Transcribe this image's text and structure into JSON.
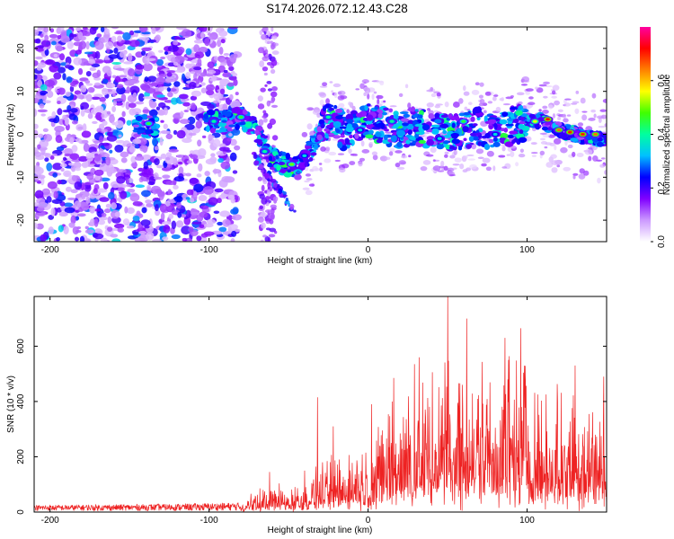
{
  "title": "S174.2026.072.12.43.C28",
  "chart_data": [
    {
      "type": "heatmap",
      "name": "spectrogram",
      "xlabel": "Height of straight line (km)",
      "ylabel": "Frequency (Hz)",
      "xlim": [
        -210,
        150
      ],
      "ylim": [
        -25,
        25
      ],
      "xticks": [
        -200,
        -100,
        0,
        100
      ],
      "yticks": [
        -20,
        -10,
        0,
        10,
        20
      ],
      "colorbar": {
        "label": "Normalized spectral amplitude",
        "range": [
          0,
          0.8
        ],
        "ticks": [
          0.0,
          0.2,
          0.4,
          0.6
        ],
        "tick_labels": [
          "0.0",
          "0.2",
          "0.4",
          "0.6"
        ],
        "colors": [
          "#ffffff",
          "#cc99ff",
          "#8000ff",
          "#0000ff",
          "#00c0ff",
          "#00ffa0",
          "#40ff00",
          "#ffff00",
          "#ff8000",
          "#ff0000",
          "#ff00a0"
        ]
      },
      "signal_track": [
        {
          "x": -145,
          "f": 2
        },
        {
          "x": -135,
          "f": 2
        },
        {
          "x": -100,
          "f": 3
        },
        {
          "x": -88,
          "f": 3
        },
        {
          "x": -80,
          "f": 4
        },
        {
          "x": -72,
          "f": 2
        },
        {
          "x": -65,
          "f": -3
        },
        {
          "x": -60,
          "f": -6
        },
        {
          "x": -52,
          "f": -7
        },
        {
          "x": -45,
          "f": -8
        },
        {
          "x": -40,
          "f": -6
        },
        {
          "x": -35,
          "f": -3
        },
        {
          "x": -28,
          "f": 2
        },
        {
          "x": -22,
          "f": 4
        },
        {
          "x": -15,
          "f": 0
        },
        {
          "x": -8,
          "f": 1
        },
        {
          "x": 0,
          "f": 3
        },
        {
          "x": 10,
          "f": 2
        },
        {
          "x": 20,
          "f": 1
        },
        {
          "x": 30,
          "f": 2
        },
        {
          "x": 40,
          "f": 1
        },
        {
          "x": 50,
          "f": 0
        },
        {
          "x": 60,
          "f": 1
        },
        {
          "x": 70,
          "f": 2
        },
        {
          "x": 80,
          "f": 0
        },
        {
          "x": 90,
          "f": 2
        },
        {
          "x": 100,
          "f": 3
        },
        {
          "x": 110,
          "f": 3
        },
        {
          "x": 120,
          "f": 1
        },
        {
          "x": 130,
          "f": 0
        },
        {
          "x": 145,
          "f": -1
        }
      ],
      "peak_blobs": [
        {
          "x": -138,
          "f": 2.5,
          "a": 0.45
        },
        {
          "x": -97,
          "f": 3,
          "a": 0.4
        },
        {
          "x": -80,
          "f": 4,
          "a": 0.45
        },
        {
          "x": -65,
          "f": -4,
          "a": 0.4
        },
        {
          "x": -48,
          "f": -7,
          "a": 0.5
        },
        {
          "x": -40,
          "f": -5,
          "a": 0.35
        },
        {
          "x": -25,
          "f": 4,
          "a": 0.4
        },
        {
          "x": -5,
          "f": 1,
          "a": 0.35
        },
        {
          "x": 15,
          "f": 3,
          "a": 0.4
        },
        {
          "x": 45,
          "f": -1,
          "a": 0.35
        },
        {
          "x": 60,
          "f": 3,
          "a": 0.45
        },
        {
          "x": 80,
          "f": 0,
          "a": 0.35
        },
        {
          "x": 105,
          "f": 3,
          "a": 0.55
        },
        {
          "x": 113,
          "f": 3.5,
          "a": 0.7
        },
        {
          "x": 120,
          "f": 1,
          "a": 0.65
        },
        {
          "x": 127,
          "f": 0.5,
          "a": 0.7
        },
        {
          "x": 135,
          "f": 0,
          "a": 0.7
        },
        {
          "x": 143,
          "f": 0,
          "a": 0.65
        }
      ]
    },
    {
      "type": "line",
      "name": "snr",
      "xlabel": "Height of straight line (km)",
      "ylabel": "SNR (10 * v/v)",
      "xlim": [
        -210,
        150
      ],
      "ylim": [
        0,
        780
      ],
      "xticks": [
        -200,
        -100,
        0,
        100
      ],
      "yticks": [
        0,
        200,
        400,
        600
      ],
      "color": "#ee2222",
      "envelope": [
        {
          "x": -210,
          "v": 25
        },
        {
          "x": -150,
          "v": 28
        },
        {
          "x": -120,
          "v": 30
        },
        {
          "x": -80,
          "v": 35
        },
        {
          "x": -70,
          "v": 60
        },
        {
          "x": -60,
          "v": 90
        },
        {
          "x": -50,
          "v": 70
        },
        {
          "x": -40,
          "v": 90
        },
        {
          "x": -30,
          "v": 150
        },
        {
          "x": -20,
          "v": 180
        },
        {
          "x": -10,
          "v": 200
        },
        {
          "x": 0,
          "v": 230
        },
        {
          "x": 10,
          "v": 300
        },
        {
          "x": 20,
          "v": 370
        },
        {
          "x": 30,
          "v": 400
        },
        {
          "x": 40,
          "v": 420
        },
        {
          "x": 50,
          "v": 470
        },
        {
          "x": 60,
          "v": 450
        },
        {
          "x": 70,
          "v": 440
        },
        {
          "x": 80,
          "v": 450
        },
        {
          "x": 90,
          "v": 460
        },
        {
          "x": 100,
          "v": 440
        },
        {
          "x": 110,
          "v": 380
        },
        {
          "x": 120,
          "v": 360
        },
        {
          "x": 130,
          "v": 370
        },
        {
          "x": 140,
          "v": 360
        },
        {
          "x": 150,
          "v": 350
        }
      ],
      "spikes": [
        {
          "x": -62,
          "v": 145
        },
        {
          "x": -40,
          "v": 150
        },
        {
          "x": -32,
          "v": 415
        },
        {
          "x": -22,
          "v": 310
        },
        {
          "x": 2,
          "v": 390
        },
        {
          "x": 16,
          "v": 485
        },
        {
          "x": 29,
          "v": 535
        },
        {
          "x": 50,
          "v": 780
        },
        {
          "x": 62,
          "v": 700
        },
        {
          "x": 86,
          "v": 630
        },
        {
          "x": 96,
          "v": 665
        },
        {
          "x": 130,
          "v": 530
        },
        {
          "x": 148,
          "v": 490
        }
      ]
    }
  ]
}
